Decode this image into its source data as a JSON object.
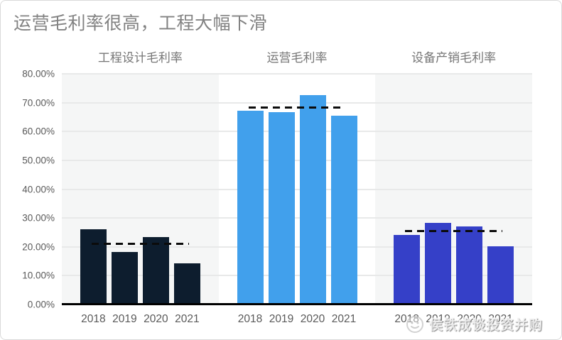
{
  "title": "运营毛利率很高，工程大幅下滑",
  "watermark": {
    "text": "侯铁成谈投资并购",
    "icon": "smiley-badge"
  },
  "chart_data": {
    "type": "bar",
    "title": "运营毛利率很高，工程大幅下滑",
    "categories": [
      "2018",
      "2019",
      "2020",
      "2021"
    ],
    "ylim": [
      0,
      80
    ],
    "ytick_step": 10,
    "ytick_labels": [
      "0.00%",
      "10.00%",
      "20.00%",
      "30.00%",
      "40.00%",
      "50.00%",
      "60.00%",
      "70.00%",
      "80.00%"
    ],
    "grid": true,
    "legend_position": "none",
    "value_unit": "%",
    "groups": [
      {
        "name": "工程设计毛利率",
        "color": "#0D1D2E",
        "panel_bg": "#F5F6F6",
        "values": [
          26.1,
          18.3,
          23.5,
          14.3
        ],
        "average": 20.6,
        "average_line_style": "dashed-black"
      },
      {
        "name": "运营毛利率",
        "color": "#41A0EC",
        "panel_bg": "#FFFFFF",
        "values": [
          67.1,
          66.7,
          72.6,
          65.6
        ],
        "average": 68.0,
        "average_line_style": "dashed-black"
      },
      {
        "name": "设备产销毛利率",
        "color": "#3540C8",
        "panel_bg": "#F5F6F6",
        "values": [
          24.1,
          28.3,
          27.2,
          20.2
        ],
        "average": 25.0,
        "average_line_style": "dashed-black"
      }
    ]
  }
}
